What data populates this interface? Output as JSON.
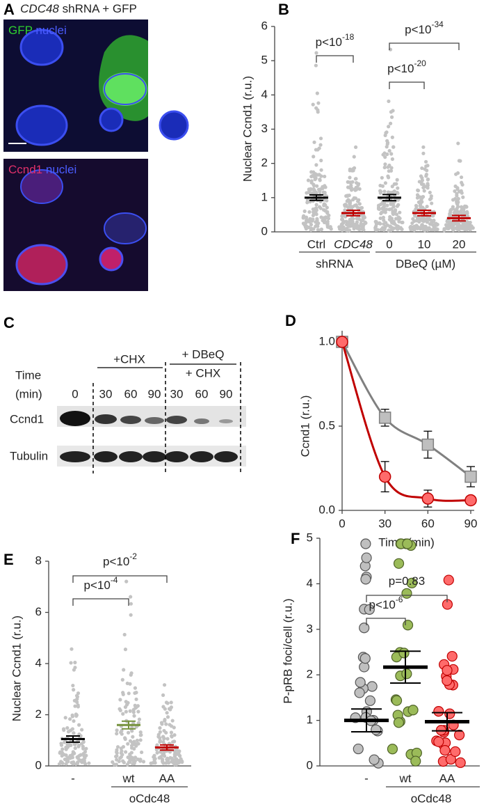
{
  "panel_letters": [
    "A",
    "B",
    "C",
    "D",
    "E",
    "F"
  ],
  "panel_a": {
    "title": [
      "CDC48",
      " shRNA + GFP"
    ],
    "top_label": [
      "GFP",
      " nuclei"
    ],
    "bottom_label": [
      "Ccnd1",
      " nuclei"
    ]
  },
  "panel_c": {
    "time": [
      "Time",
      "(min)"
    ],
    "treatments": [
      "+CHX",
      "+ DBeQ",
      "+ CHX"
    ],
    "lanes": [
      "0",
      "30",
      "60",
      "90",
      "30",
      "60",
      "90"
    ],
    "bands": [
      "Ccnd1",
      "Tubulin"
    ]
  },
  "chart_data": [
    {
      "type": "dotplot",
      "ylabel": "Nuclear Ccnd1 (r.u.)",
      "categories": [
        "Ctrl",
        "CDC48",
        "0",
        "10",
        "20"
      ],
      "values": [
        1.0,
        0.55,
        1.0,
        0.55,
        0.4
      ],
      "errors": [
        0.08,
        0.08,
        0.09,
        0.08,
        0.08
      ],
      "colors": [
        "#000000",
        "#c00000",
        "#000000",
        "#c00000",
        "#c00000"
      ],
      "point_color": "#c3c3c3",
      "groups": [
        "shRNA",
        "DBeQ (µM)"
      ],
      "annotations": [
        {
          "text": "p<10",
          "sup": "-18"
        },
        {
          "text": "p<10",
          "sup": "-20"
        },
        {
          "text": "p<10",
          "sup": "-34"
        }
      ],
      "ylim": [
        0,
        6
      ],
      "yticks": [
        0,
        1,
        2,
        3,
        4,
        5,
        6
      ]
    },
    {
      "type": "line",
      "xlabel": "Time (min)",
      "ylabel": "Ccnd1 (r.u.)",
      "x": [
        0,
        30,
        60,
        90
      ],
      "series": [
        {
          "color": "#808080",
          "fill": "#bfbfbf",
          "marker": "square",
          "values": [
            1.0,
            0.55,
            0.39,
            0.2
          ],
          "errors": [
            0.03,
            0.05,
            0.08,
            0.06
          ]
        },
        {
          "color": "#c00000",
          "fill": "#ff6b6b",
          "marker": "circle",
          "values": [
            1.0,
            0.2,
            0.07,
            0.06
          ],
          "errors": [
            0.0,
            0.09,
            0.05,
            0.02
          ]
        }
      ],
      "xlim": [
        0,
        90
      ],
      "xticks": [
        0,
        30,
        60,
        90
      ],
      "ylim": [
        0,
        1.0
      ],
      "yticks": [
        {
          "value": 0,
          "label": "0.0"
        },
        {
          "value": 0.5,
          "label": "0.5"
        },
        {
          "value": 1.0,
          "label": "1.0"
        }
      ]
    },
    {
      "type": "dotplot",
      "ylabel": "Nuclear Ccnd1 (r.u.)",
      "categories": [
        "-",
        "wt",
        "AA"
      ],
      "values": [
        1.05,
        1.6,
        0.72
      ],
      "errors": [
        0.12,
        0.15,
        0.1
      ],
      "colors": [
        "#000000",
        "#76923c",
        "#c00000"
      ],
      "point_color": "#c3c3c3",
      "groups": [
        "oCdc48"
      ],
      "annotations": [
        {
          "text": "p<10",
          "sup": "-4"
        },
        {
          "text": "p<10",
          "sup": "-2"
        }
      ],
      "ylim": [
        0,
        8
      ],
      "yticks": [
        0,
        2,
        4,
        6,
        8
      ]
    },
    {
      "type": "dotplot",
      "ylabel": "P-pRB foci/cell (r.u.)",
      "categories": [
        "-",
        "wt",
        "AA"
      ],
      "values": [
        1.0,
        2.17,
        0.97
      ],
      "errors": [
        0.25,
        0.35,
        0.2
      ],
      "colors": [
        "#000000",
        "#000000",
        "#000000"
      ],
      "point_colors": [
        "#bfbfbf",
        "#9bbb59",
        "#ff6b6b"
      ],
      "point_strokes": [
        "#555555",
        "#4f6228",
        "#c00000"
      ],
      "groups": [
        "oCdc48"
      ],
      "annotations": [
        {
          "text": "p<10",
          "sup": "-6"
        },
        {
          "text": "p=0.83"
        }
      ],
      "ylim": [
        0,
        5
      ],
      "yticks": [
        0,
        1,
        2,
        3,
        4,
        5
      ]
    }
  ]
}
